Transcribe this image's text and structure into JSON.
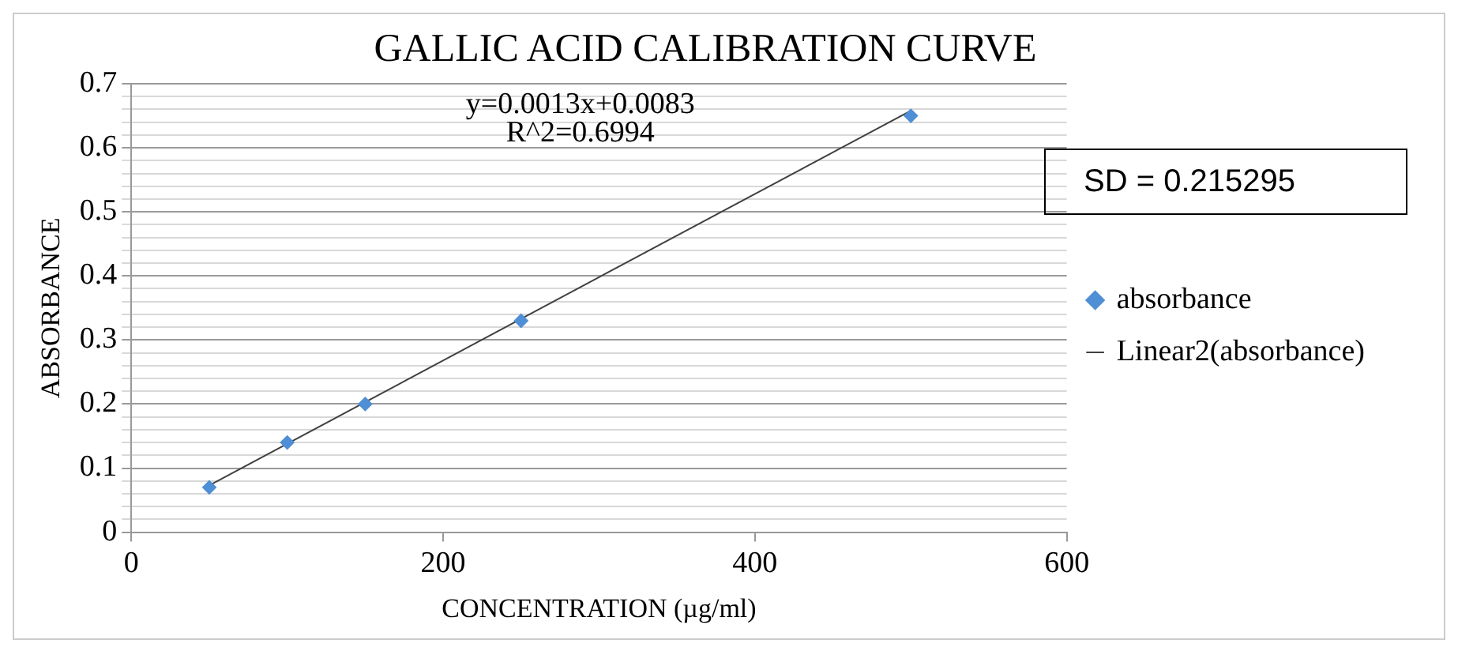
{
  "chart_data": {
    "type": "scatter",
    "title": "GALLIC ACID CALIBRATION CURVE",
    "xlabel": "CONCENTRATION (µg/ml)",
    "ylabel": "ABSORBANCE",
    "x": [
      50,
      100,
      150,
      250,
      500
    ],
    "series": [
      {
        "name": "absorbance",
        "type": "scatter",
        "color": "#4f8fd6",
        "marker": "diamond",
        "values": [
          0.07,
          0.14,
          0.2,
          0.33,
          0.65
        ]
      },
      {
        "name": "Linear2(absorbance)",
        "type": "line",
        "color": "#404040",
        "marker": "none",
        "line_style": "solid",
        "x": [
          50,
          500
        ],
        "values": [
          0.073,
          0.658
        ]
      }
    ],
    "xlim": [
      0,
      600
    ],
    "xticks": [
      0,
      200,
      400,
      600
    ],
    "ylim": [
      0,
      0.7
    ],
    "yticks": [
      0,
      {
        "value": 0.02,
        "label": null
      },
      {
        "value": 0.04,
        "label": null
      },
      {
        "value": 0.06,
        "label": null
      },
      {
        "value": 0.08,
        "label": null
      },
      0.1,
      {
        "value": 0.12,
        "label": null
      },
      {
        "value": 0.14,
        "label": null
      },
      {
        "value": 0.16,
        "label": null
      },
      {
        "value": 0.18,
        "label": null
      },
      0.2,
      {
        "value": 0.22,
        "label": null
      },
      {
        "value": 0.24,
        "label": null
      },
      {
        "value": 0.26,
        "label": null
      },
      {
        "value": 0.28,
        "label": null
      },
      0.3,
      {
        "value": 0.32,
        "label": null
      },
      {
        "value": 0.34,
        "label": null
      },
      {
        "value": 0.36,
        "label": null
      },
      {
        "value": 0.38,
        "label": null
      },
      0.4,
      {
        "value": 0.42,
        "label": null
      },
      {
        "value": 0.44,
        "label": null
      },
      {
        "value": 0.46,
        "label": null
      },
      {
        "value": 0.48,
        "label": null
      },
      0.5,
      {
        "value": 0.52,
        "label": null
      },
      {
        "value": 0.54,
        "label": null
      },
      {
        "value": 0.56,
        "label": null
      },
      {
        "value": 0.58,
        "label": null
      },
      0.6,
      {
        "value": 0.62,
        "label": null
      },
      {
        "value": 0.64,
        "label": null
      },
      {
        "value": 0.66,
        "label": null
      },
      {
        "value": 0.68,
        "label": null
      },
      0.7
    ],
    "grid": "y",
    "legend": "right",
    "annotations": [
      "y=0.0013x+0.0083",
      "R^2=0.6994",
      "SD = 0.215295"
    ]
  }
}
